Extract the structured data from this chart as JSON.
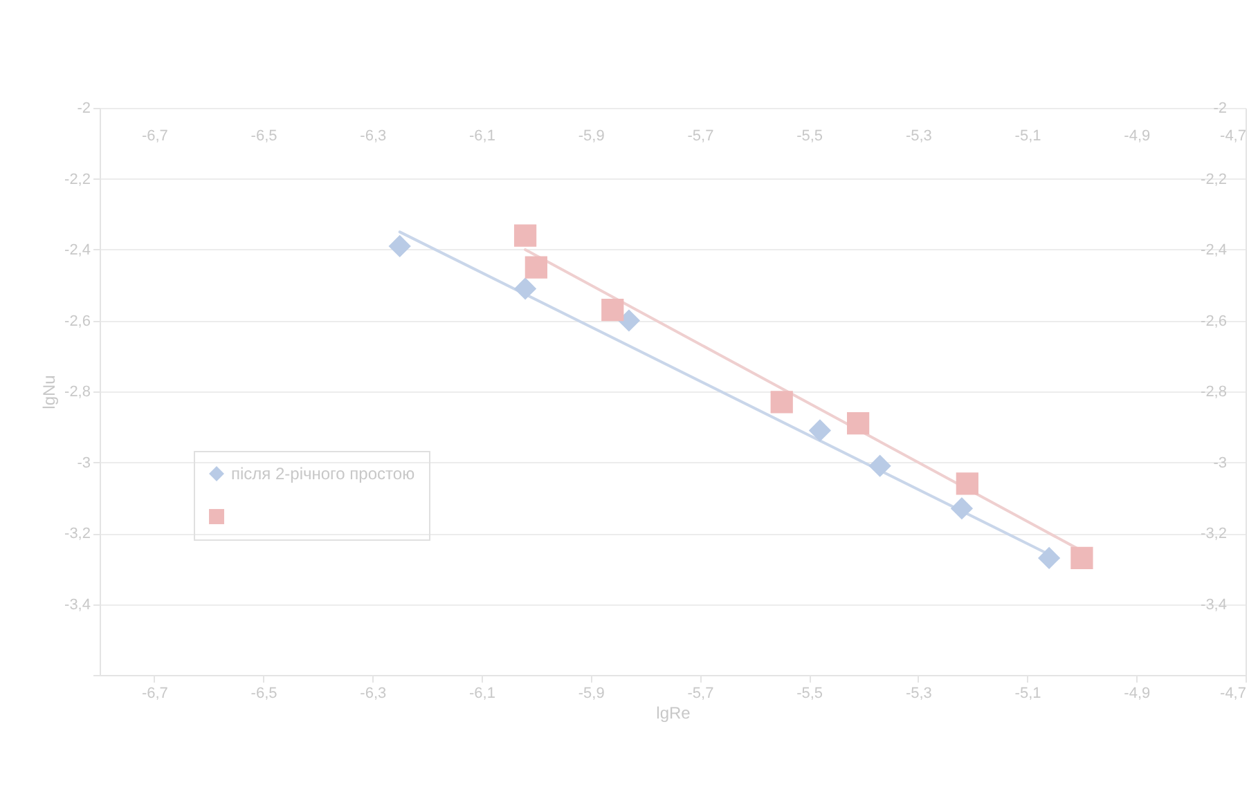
{
  "chart_data": {
    "type": "scatter",
    "xlabel": "lgRe",
    "ylabel": "lgNu",
    "xlim": [
      -6.8,
      -4.7
    ],
    "xticks": [
      {
        "value": -6.7,
        "label": "-6,7"
      },
      {
        "value": -6.5,
        "label": "-6,5"
      },
      {
        "value": -6.3,
        "label": "-6,3"
      },
      {
        "value": -6.1,
        "label": "-6,1"
      },
      {
        "value": -5.9,
        "label": "-5,9"
      },
      {
        "value": -5.7,
        "label": "-5,7"
      },
      {
        "value": -5.5,
        "label": "-5,5"
      },
      {
        "value": -5.3,
        "label": "-5,3"
      },
      {
        "value": -5.1,
        "label": "-5,1"
      },
      {
        "value": -4.9,
        "label": "-4,9"
      },
      {
        "value": -4.7,
        "label": "-4,7"
      }
    ],
    "x2lim": [
      -6.8,
      -4.7
    ],
    "x2ticks": [
      {
        "value": -6.7,
        "label": "-6,7"
      },
      {
        "value": -6.5,
        "label": "-6,5"
      },
      {
        "value": -6.3,
        "label": "-6,3"
      },
      {
        "value": -6.1,
        "label": "-6,1"
      },
      {
        "value": -5.9,
        "label": "-5,9"
      },
      {
        "value": -5.7,
        "label": "-5,7"
      },
      {
        "value": -5.5,
        "label": "-5,5"
      },
      {
        "value": -5.3,
        "label": "-5,3"
      },
      {
        "value": -5.1,
        "label": "-5,1"
      },
      {
        "value": -4.9,
        "label": "-4,9"
      },
      {
        "value": -4.7,
        "label": "-4,7"
      }
    ],
    "ylim": [
      -3.6,
      -2
    ],
    "yticks": [
      -2,
      {
        "value": -2.2,
        "label": "-2,2"
      },
      {
        "value": -2.4,
        "label": "-2,4"
      },
      {
        "value": -2.6,
        "label": "-2,6"
      },
      {
        "value": -2.8,
        "label": "-2,8"
      },
      -3,
      {
        "value": -3.2,
        "label": "-3,2"
      },
      {
        "value": -3.4,
        "label": "-3,4"
      },
      {
        "value": -3.6,
        "label": null
      }
    ],
    "y2lim": [
      -3.6,
      -2
    ],
    "y2ticks": [
      -2,
      {
        "value": -2.2,
        "label": "-2,2"
      },
      {
        "value": -2.4,
        "label": "-2,4"
      },
      {
        "value": -2.6,
        "label": "-2,6"
      },
      {
        "value": -2.8,
        "label": "-2,8"
      },
      -3,
      {
        "value": -3.2,
        "label": "-3,2"
      },
      {
        "value": -3.4,
        "label": "-3,4"
      },
      {
        "value": -3.6,
        "label": null
      }
    ],
    "grid": "y",
    "legend": "bottom left",
    "series": [
      {
        "type": "line",
        "color": "#c9d6ea",
        "marker": "none",
        "line_style": "solid",
        "x": [
          -6.25,
          -5.06
        ],
        "values": [
          -2.35,
          -3.26
        ]
      },
      {
        "type": "line",
        "color": "#efcfcf",
        "marker": "none",
        "line_style": "solid",
        "x": [
          -6.02,
          -5.0
        ],
        "values": [
          -2.4,
          -3.25
        ]
      },
      {
        "name": "після 2-річного простою",
        "color": "#b9cbe6",
        "marker": "diamond",
        "x": [
          -6.25,
          -6.02,
          -5.83,
          -5.48,
          -5.37,
          -5.22,
          -5.06
        ],
        "values": [
          -2.39,
          -2.51,
          -2.6,
          -2.91,
          -3.01,
          -3.13,
          -3.27
        ]
      },
      {
        "color": "#eeb9b9",
        "marker": "square",
        "axis": "y2",
        "x": [
          -6.02,
          -6.0,
          -5.86,
          -5.55,
          -5.41,
          -5.21,
          -5.0
        ],
        "values": [
          -2.36,
          -2.45,
          -2.57,
          -2.83,
          -2.89,
          -3.06,
          -3.27
        ]
      }
    ]
  }
}
